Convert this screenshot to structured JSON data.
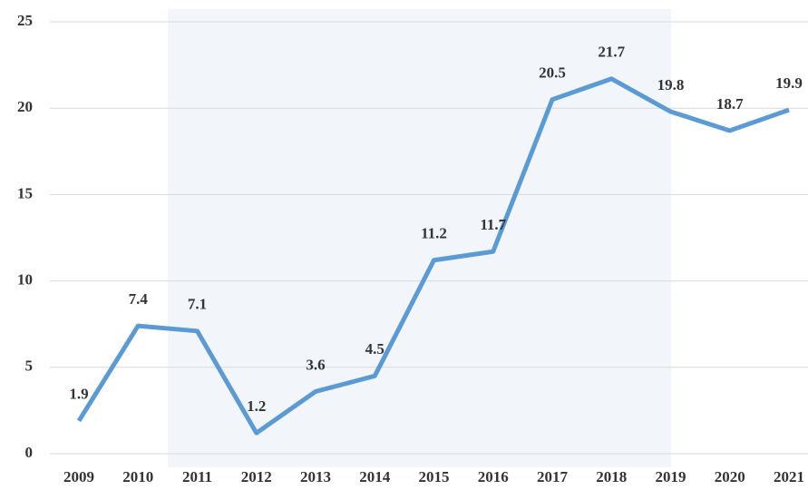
{
  "chart_data": {
    "type": "line",
    "categories": [
      "2009",
      "2010",
      "2011",
      "2012",
      "2013",
      "2014",
      "2015",
      "2016",
      "2017",
      "2018",
      "2019",
      "2020",
      "2021"
    ],
    "series": [
      {
        "color": "#5b9bd5",
        "values": [
          1.9,
          7.4,
          7.1,
          1.2,
          3.6,
          4.5,
          11.2,
          11.7,
          20.5,
          21.7,
          19.8,
          18.7,
          19.9
        ]
      }
    ],
    "ylim": [
      0,
      25
    ],
    "yticks": [
      0,
      5,
      10,
      15,
      20,
      25
    ],
    "grid": true,
    "data_labels": true
  }
}
